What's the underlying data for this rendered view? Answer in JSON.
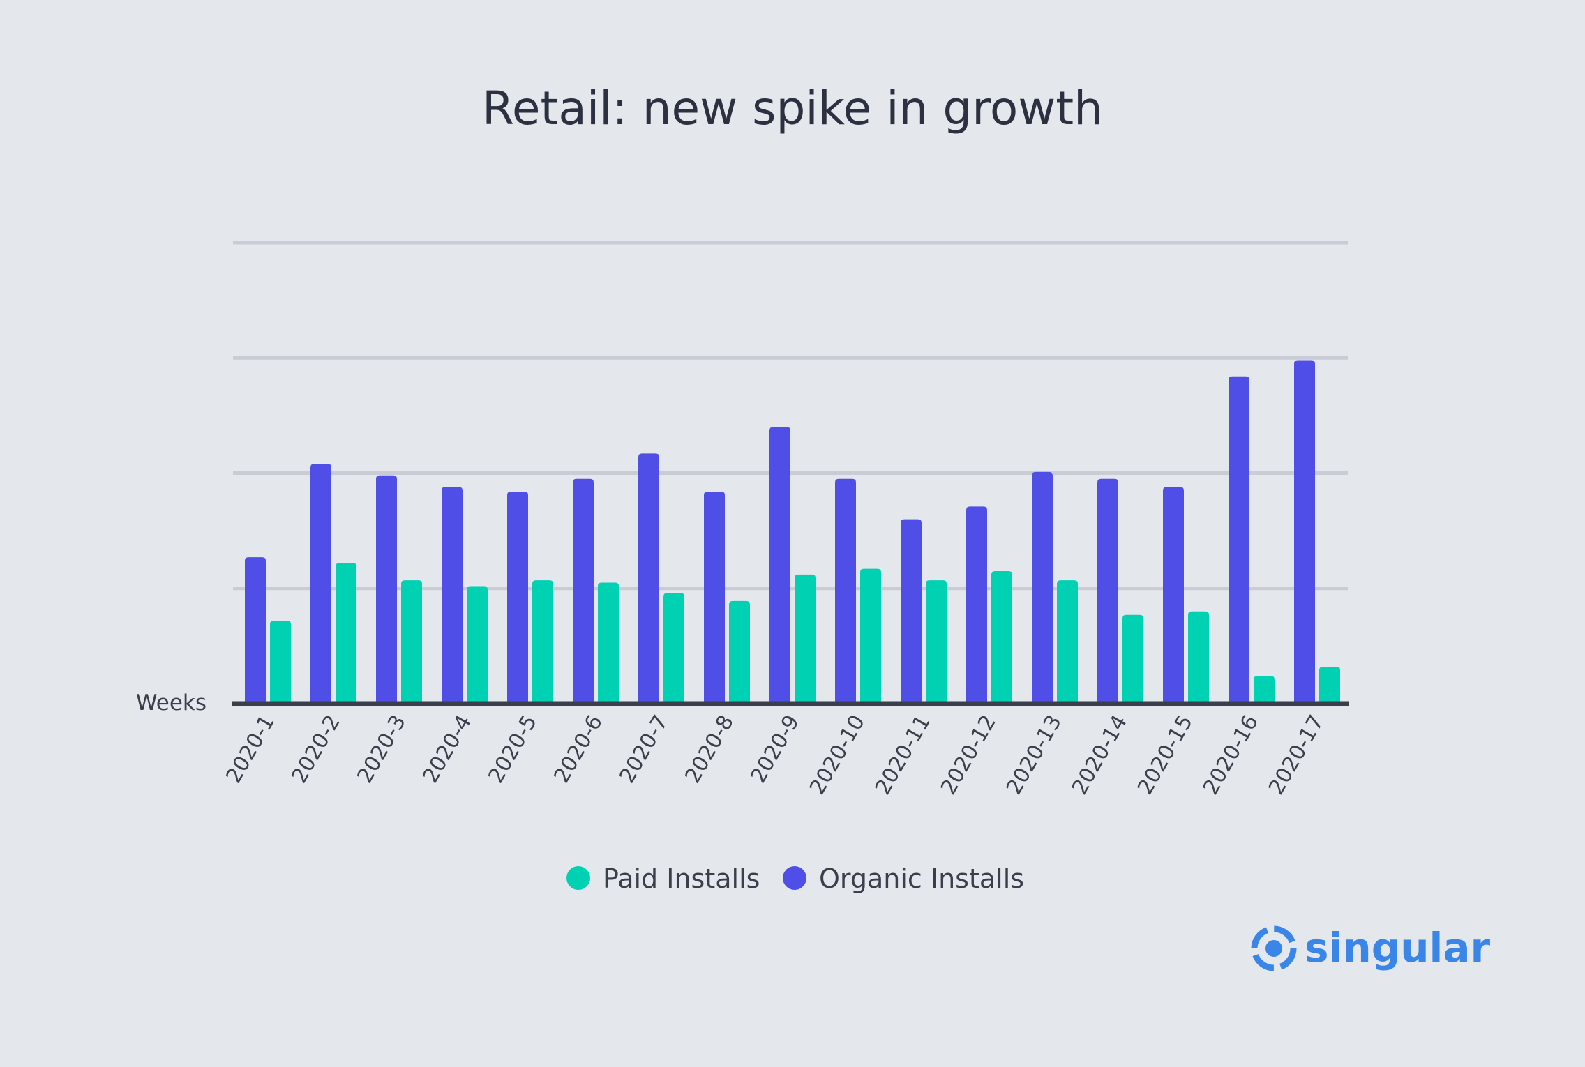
{
  "brand": {
    "name": "singular",
    "color": "#3a86e8"
  },
  "chart_data": {
    "type": "bar",
    "title": "Retail: new spike in growth",
    "xlabel": "Weeks",
    "ylabel": "",
    "categories": [
      "2020-1",
      "2020-2",
      "2020-3",
      "2020-4",
      "2020-5",
      "2020-6",
      "2020-7",
      "2020-8",
      "2020-9",
      "2020-10",
      "2020-11",
      "2020-12",
      "2020-13",
      "2020-14",
      "2020-15",
      "2020-16",
      "2020-17"
    ],
    "series": [
      {
        "name": "Organic Installs",
        "color": "#4f4fe8",
        "values": [
          1.27,
          2.08,
          1.98,
          1.88,
          1.84,
          1.95,
          2.17,
          1.84,
          2.4,
          1.95,
          1.6,
          1.71,
          2.01,
          1.95,
          1.88,
          2.84,
          2.98
        ]
      },
      {
        "name": "Paid Installs",
        "color": "#00d1b2",
        "values": [
          0.72,
          1.22,
          1.07,
          1.02,
          1.07,
          1.05,
          0.96,
          0.89,
          1.12,
          1.17,
          1.07,
          1.15,
          1.07,
          0.77,
          0.8,
          0.24,
          0.32
        ]
      }
    ],
    "ylim": [
      0,
      4
    ],
    "ytick_count": 4,
    "grid": true,
    "y_tick_labels_shown": false,
    "legend": {
      "placement": "bottom-center",
      "order": [
        "Paid Installs",
        "Organic Installs"
      ]
    },
    "colors": {
      "background": "#e4e7ec",
      "gridline": "#c9ccd4",
      "baseline": "#3a3f4c"
    }
  }
}
